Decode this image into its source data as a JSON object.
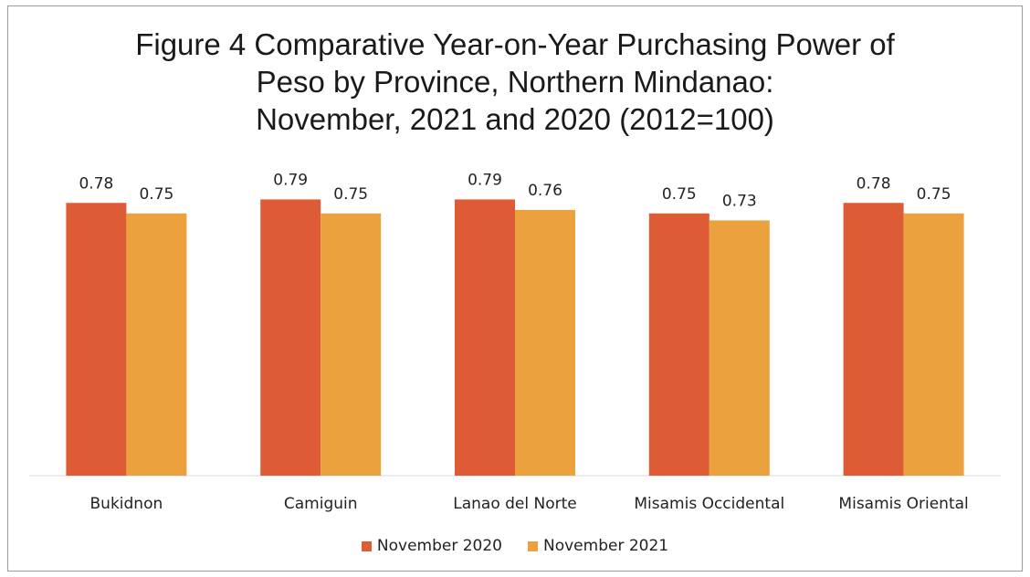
{
  "title_lines": [
    "Figure 4 Comparative Year-on-Year Purchasing Power of",
    "Peso by Province, Northern Mindanao:",
    "November, 2021 and 2020 (2012=100)"
  ],
  "colors": {
    "november_2020": "#dd5c36",
    "november_2021": "#eba13e",
    "axis": "#d9d9d9",
    "label_text": "#222222"
  },
  "chart_data": {
    "type": "bar",
    "title": "Figure 4 Comparative Year-on-Year Purchasing Power of Peso by Province, Northern Mindanao: November, 2021 and 2020 (2012=100)",
    "categories": [
      "Bukidnon",
      "Camiguin",
      "Lanao del Norte",
      "Misamis Occidental",
      "Misamis Oriental"
    ],
    "series": [
      {
        "name": "November 2020",
        "values": [
          0.78,
          0.79,
          0.79,
          0.75,
          0.78
        ]
      },
      {
        "name": "November 2021",
        "values": [
          0.75,
          0.75,
          0.76,
          0.73,
          0.75
        ]
      }
    ],
    "xlabel": "",
    "ylabel": "",
    "ylim": [
      0,
      1
    ],
    "grid": false,
    "legend": "bottom"
  }
}
